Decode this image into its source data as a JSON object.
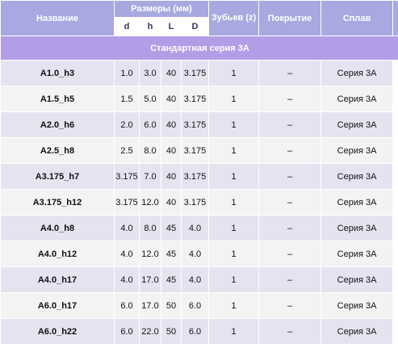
{
  "headers": {
    "name": "Название",
    "dims": "Размеры (мм)",
    "teeth": "Зубьев (z)",
    "coating": "Покрытие",
    "alloy": "Сплав",
    "sub": [
      "d",
      "h",
      "L",
      "D"
    ]
  },
  "series_title": "Стандартная серия 3А",
  "rows": [
    {
      "name": "A1.0_h3",
      "d": "1.0",
      "h": "3.0",
      "L": "40",
      "D": "3.175",
      "z": "1",
      "coating": "–",
      "alloy": "Серия 3А"
    },
    {
      "name": "A1.5_h5",
      "d": "1.5",
      "h": "5.0",
      "L": "40",
      "D": "3.175",
      "z": "1",
      "coating": "–",
      "alloy": "Серия 3А"
    },
    {
      "name": "A2.0_h6",
      "d": "2.0",
      "h": "6.0",
      "L": "40",
      "D": "3.175",
      "z": "1",
      "coating": "–",
      "alloy": "Серия 3А"
    },
    {
      "name": "A2.5_h8",
      "d": "2.5",
      "h": "8.0",
      "L": "40",
      "D": "3.175",
      "z": "1",
      "coating": "–",
      "alloy": "Серия 3А"
    },
    {
      "name": "A3.175_h7",
      "d": "3.175",
      "h": "7.0",
      "L": "40",
      "D": "3.175",
      "z": "1",
      "coating": "–",
      "alloy": "Серия 3А"
    },
    {
      "name": "A3.175_h12",
      "d": "3.175",
      "h": "12.0",
      "L": "40",
      "D": "3.175",
      "z": "1",
      "coating": "–",
      "alloy": "Серия 3А"
    },
    {
      "name": "A4.0_h8",
      "d": "4.0",
      "h": "8.0",
      "L": "45",
      "D": "4.0",
      "z": "1",
      "coating": "–",
      "alloy": "Серия 3А"
    },
    {
      "name": "A4.0_h12",
      "d": "4.0",
      "h": "12.0",
      "L": "45",
      "D": "4.0",
      "z": "1",
      "coating": "–",
      "alloy": "Серия 3А"
    },
    {
      "name": "A4.0_h17",
      "d": "4.0",
      "h": "17.0",
      "L": "45",
      "D": "4.0",
      "z": "1",
      "coating": "–",
      "alloy": "Серия 3А"
    },
    {
      "name": "A6.0_h17",
      "d": "6.0",
      "h": "17.0",
      "L": "50",
      "D": "6.0",
      "z": "1",
      "coating": "–",
      "alloy": "Серия 3А"
    },
    {
      "name": "A6.0_h22",
      "d": "6.0",
      "h": "22.0",
      "L": "50",
      "D": "6.0",
      "z": "1",
      "coating": "–",
      "alloy": "Серия 3А"
    }
  ],
  "colors": {
    "header_bg": "#a7a9e0",
    "series_bg": "#b39de6",
    "row_odd": "#e4e4f1",
    "row_even": "#f3f3f3"
  }
}
